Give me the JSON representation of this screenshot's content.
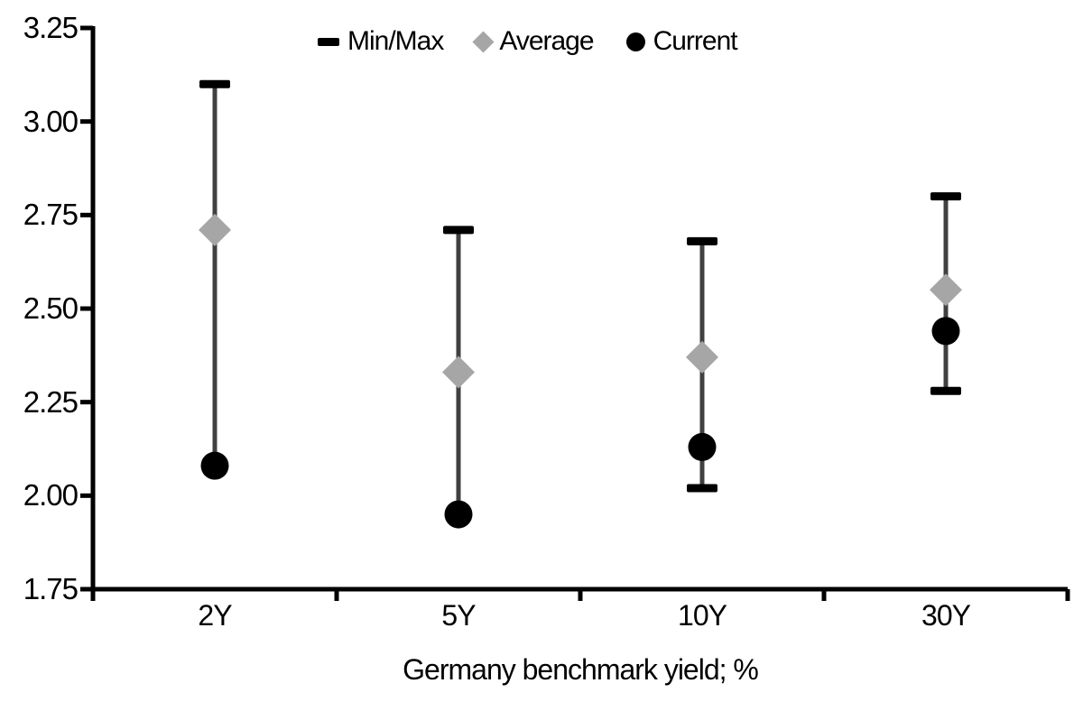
{
  "chart_data": {
    "type": "scatter",
    "title": "",
    "xlabel": "Germany benchmark yield; %",
    "ylabel": "",
    "categories": [
      "2Y",
      "5Y",
      "10Y",
      "30Y"
    ],
    "ylim": [
      1.75,
      3.25
    ],
    "ytick_step": 0.25,
    "ytick_labels_top_to_bottom": [
      "3.25",
      "3.00",
      "2.75",
      "2.50",
      "2.25",
      "2.00",
      "1.75"
    ],
    "grid": false,
    "legend_position": "top-center",
    "legend": [
      {
        "label": "Min/Max",
        "marker": "dash",
        "color": "#000000"
      },
      {
        "label": "Average",
        "marker": "diamond",
        "color": "#a6a6a6"
      },
      {
        "label": "Current",
        "marker": "circle",
        "color": "#000000"
      }
    ],
    "series": [
      {
        "name": "Max",
        "values": [
          3.1,
          2.71,
          2.68,
          2.8
        ]
      },
      {
        "name": "Min",
        "values": [
          2.08,
          1.95,
          2.02,
          2.28
        ]
      },
      {
        "name": "Average",
        "values": [
          2.71,
          2.33,
          2.37,
          2.55
        ]
      },
      {
        "name": "Current",
        "values": [
          2.08,
          1.95,
          2.13,
          2.44
        ]
      }
    ],
    "min_cap_visible": [
      false,
      false,
      true,
      true
    ],
    "colors": {
      "axis": "#000000",
      "whisker": "#404040",
      "cap": "#000000",
      "average": "#a6a6a6",
      "current": "#000000",
      "text": "#000000",
      "background": "#ffffff"
    }
  }
}
